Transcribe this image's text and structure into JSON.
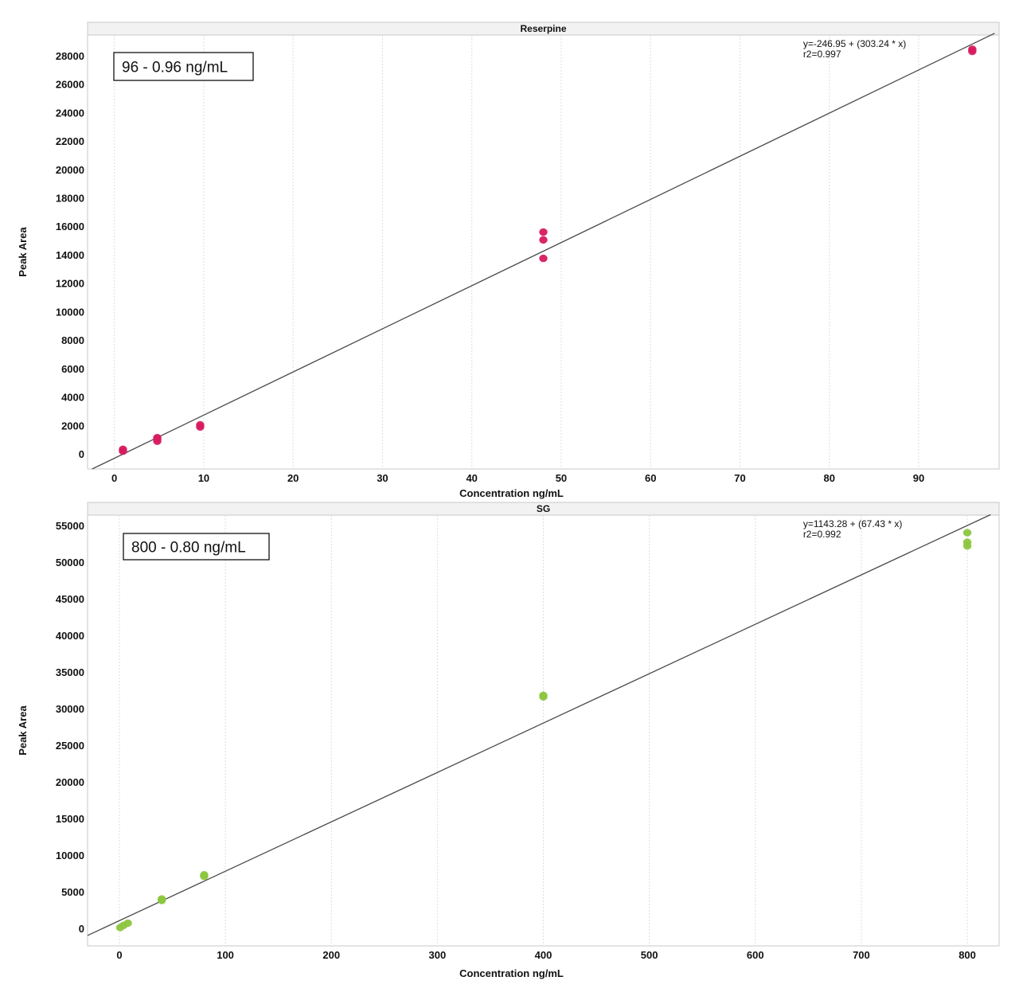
{
  "chart_data": [
    {
      "type": "scatter",
      "title": "Reserpine",
      "xlabel": "Concentration ng/mL",
      "ylabel": "Peak Area",
      "xlim": [
        -3,
        99
      ],
      "ylim": [
        -1000,
        29500
      ],
      "xticks": [
        0,
        10,
        20,
        30,
        40,
        50,
        60,
        70,
        80,
        90
      ],
      "yticks": [
        0,
        2000,
        4000,
        6000,
        8000,
        10000,
        12000,
        14000,
        16000,
        18000,
        20000,
        22000,
        24000,
        26000,
        28000
      ],
      "grid": "vertical",
      "point_color": "#d81b60",
      "points": [
        {
          "x": 0.96,
          "y": 250
        },
        {
          "x": 0.96,
          "y": 380
        },
        {
          "x": 4.8,
          "y": 950
        },
        {
          "x": 4.8,
          "y": 1100
        },
        {
          "x": 4.8,
          "y": 1200
        },
        {
          "x": 9.6,
          "y": 1950
        },
        {
          "x": 9.6,
          "y": 2100
        },
        {
          "x": 48,
          "y": 13800
        },
        {
          "x": 48,
          "y": 15100
        },
        {
          "x": 48,
          "y": 15650
        },
        {
          "x": 96,
          "y": 28350
        },
        {
          "x": 96,
          "y": 28500
        }
      ],
      "fit": {
        "intercept": -246.95,
        "slope": 303.24,
        "x_range": [
          -2.5,
          98.5
        ]
      },
      "equation_line1": "y=-246.95 + (303.24 * x)",
      "equation_line2": "r2=0.997",
      "range_label": "96 - 0.96 ng/mL"
    },
    {
      "type": "scatter",
      "title": "SG",
      "xlabel": "Concentration ng/mL",
      "ylabel": "Peak Area",
      "xlim": [
        -30,
        830
      ],
      "ylim": [
        -2300,
        56500
      ],
      "xticks": [
        0,
        100,
        200,
        300,
        400,
        500,
        600,
        700,
        800
      ],
      "yticks": [
        0,
        5000,
        10000,
        15000,
        20000,
        25000,
        30000,
        35000,
        40000,
        45000,
        50000,
        55000
      ],
      "grid": "vertical",
      "point_color": "#8dc63f",
      "points": [
        {
          "x": 0.8,
          "y": 200
        },
        {
          "x": 4,
          "y": 500
        },
        {
          "x": 8,
          "y": 800
        },
        {
          "x": 40,
          "y": 3900
        },
        {
          "x": 40,
          "y": 4100
        },
        {
          "x": 80,
          "y": 7200
        },
        {
          "x": 80,
          "y": 7400
        },
        {
          "x": 400,
          "y": 31700
        },
        {
          "x": 400,
          "y": 31900
        },
        {
          "x": 800,
          "y": 52300
        },
        {
          "x": 800,
          "y": 52800
        },
        {
          "x": 800,
          "y": 54100
        }
      ],
      "fit": {
        "intercept": 1143.28,
        "slope": 67.43,
        "x_range": [
          -30,
          822
        ]
      },
      "equation_line1": "y=1143.28 + (67.43 * x)",
      "equation_line2": "r2=0.992",
      "range_label": "800 - 0.80 ng/mL"
    }
  ]
}
